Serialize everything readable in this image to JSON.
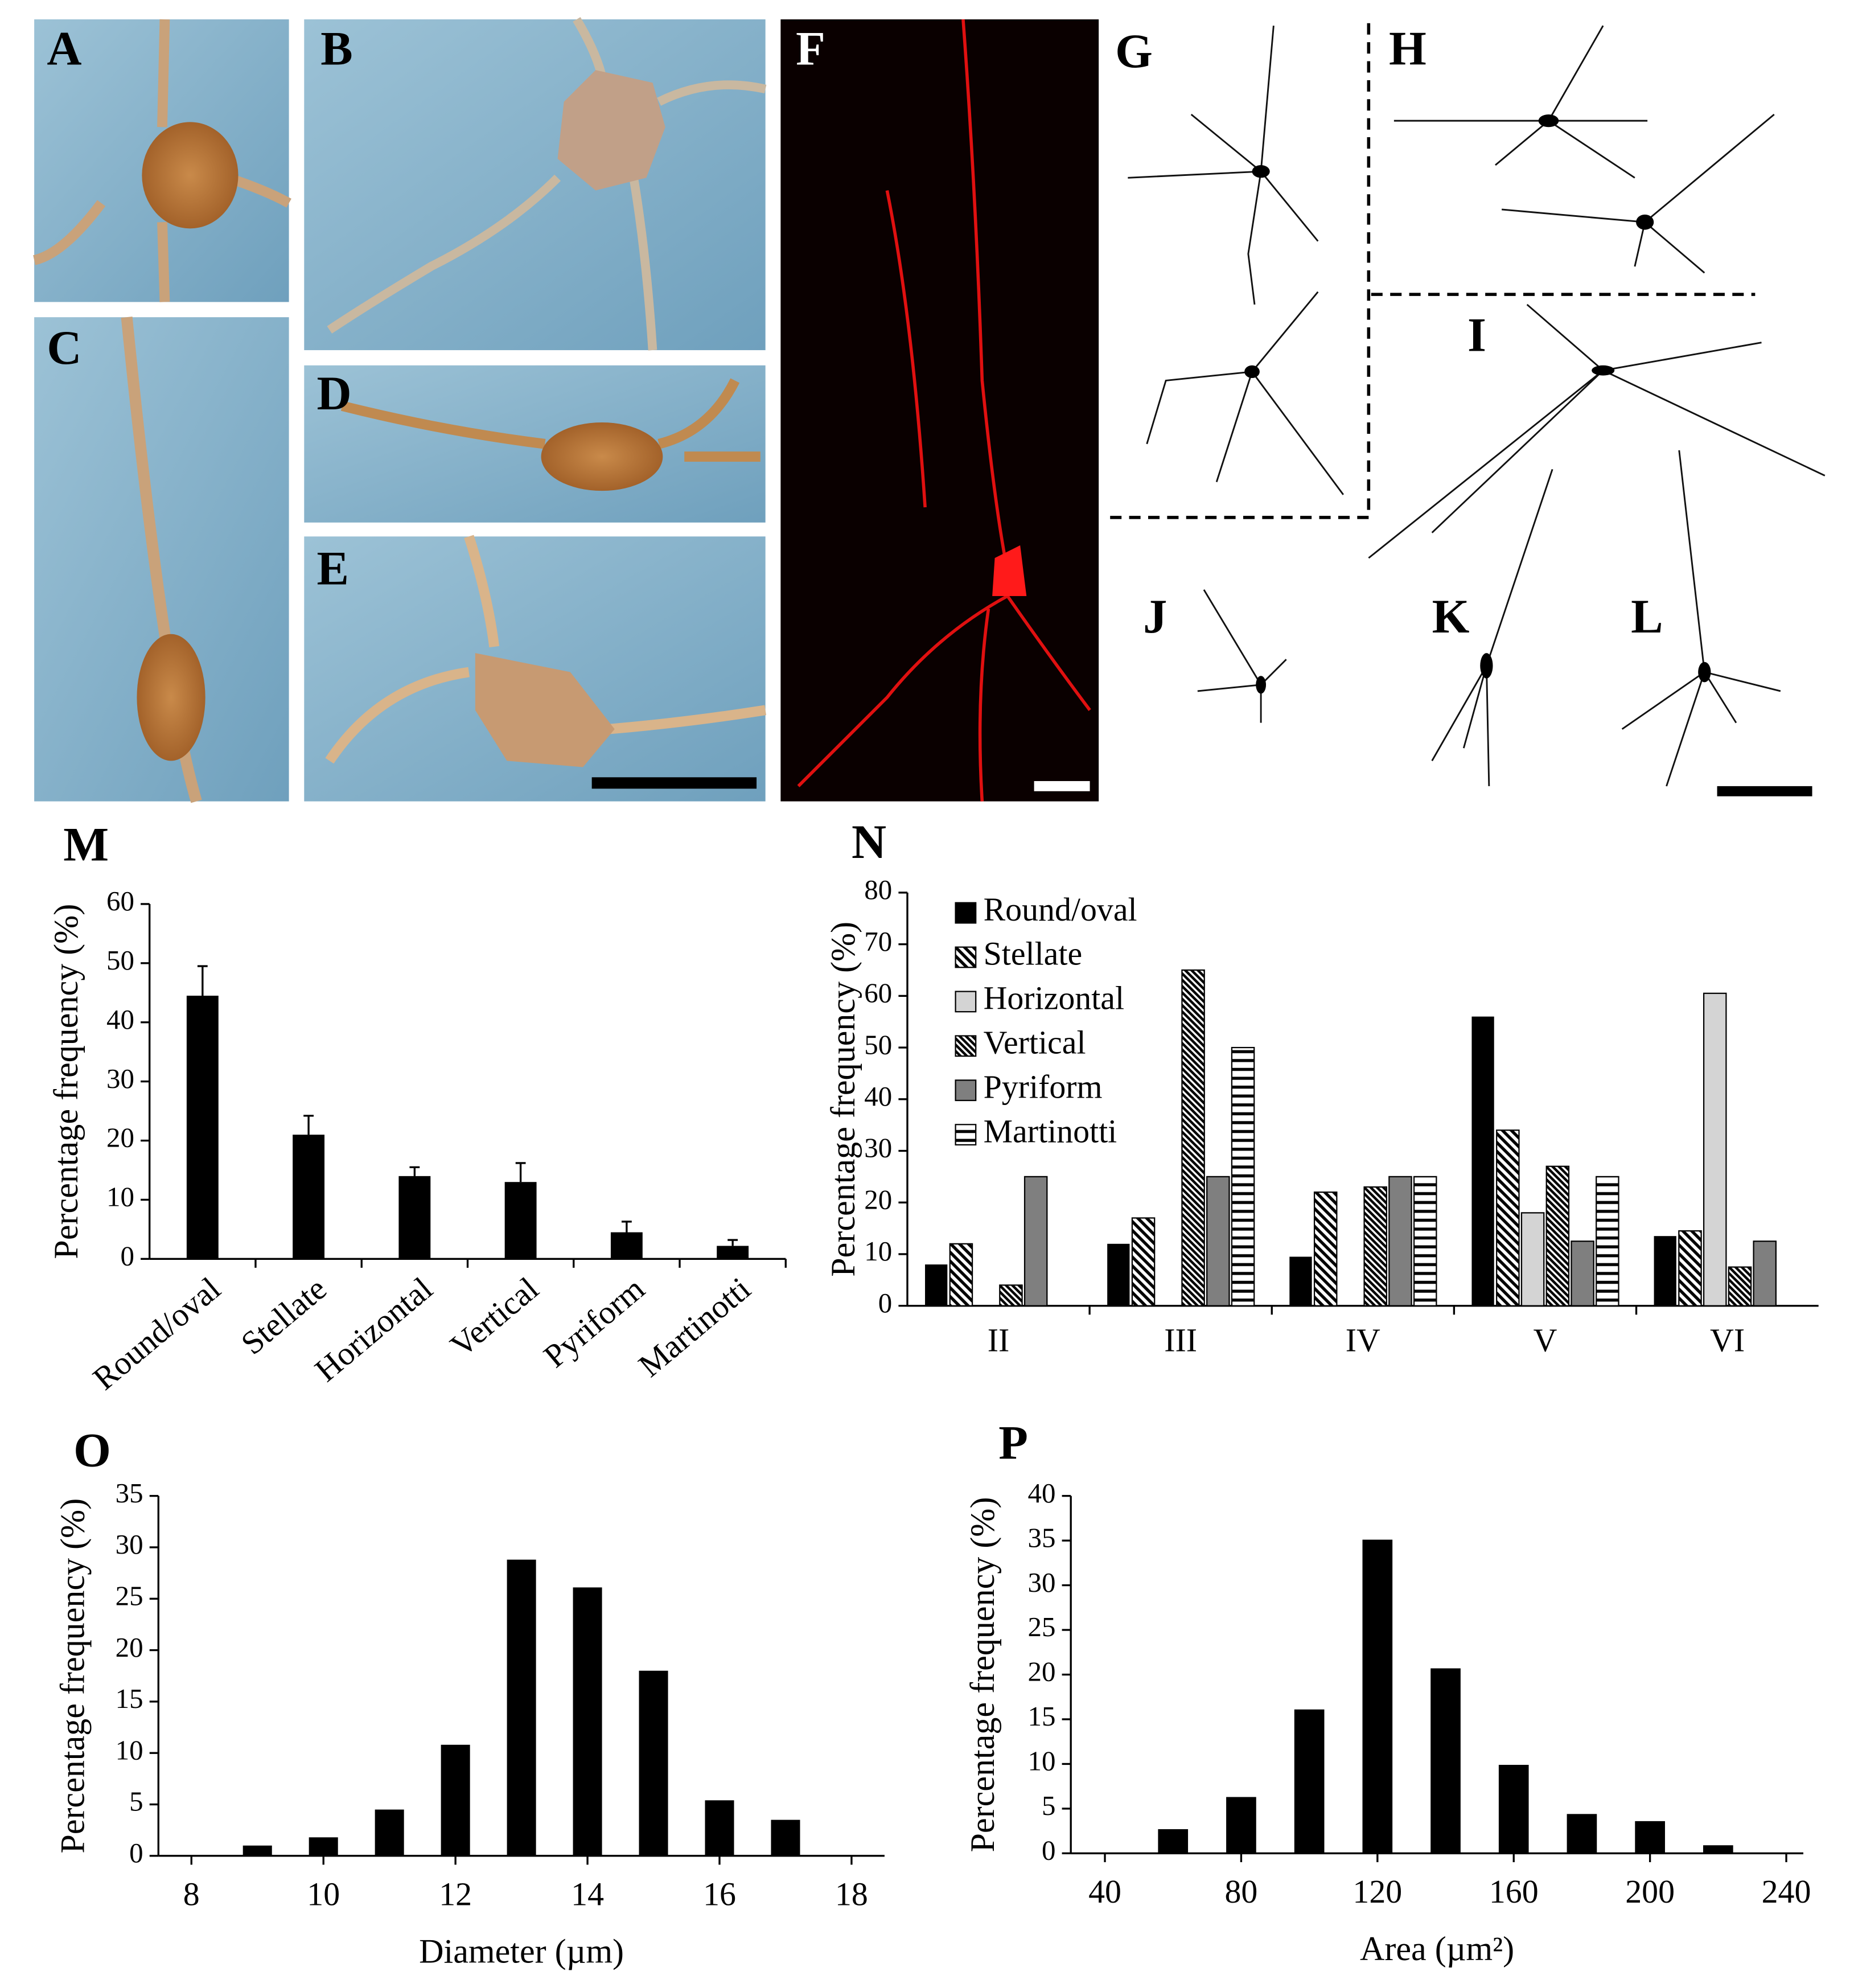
{
  "panel_labels": [
    "A",
    "B",
    "C",
    "D",
    "E",
    "F",
    "G",
    "H",
    "I",
    "J",
    "K",
    "L"
  ],
  "chart_data": [
    {
      "type": "bar",
      "title": "M",
      "y_label": "Percentage frequency (%)",
      "categories": [
        "Round/oval",
        "Stellate",
        "Horizontal",
        "Vertical",
        "Pyriform",
        "Martinotti"
      ],
      "values": [
        44.5,
        21,
        14,
        13,
        4.5,
        2.2
      ],
      "errors": [
        5,
        3.2,
        1.5,
        3.2,
        1.8,
        1
      ],
      "color": "#000000",
      "ylim": [
        0,
        60
      ],
      "yticks": [
        0,
        10,
        20,
        30,
        40,
        50,
        60
      ]
    },
    {
      "type": "bar",
      "title": "N",
      "y_label": "Percentage frequency (%)",
      "categories": [
        "II",
        "III",
        "IV",
        "V",
        "VI"
      ],
      "series": [
        {
          "name": "Round/oval",
          "color": "#000000",
          "pattern": "solid",
          "values": [
            8,
            12,
            9.5,
            56,
            13.5
          ]
        },
        {
          "name": "Stellate",
          "color": "#000000",
          "pattern": "diagonal-wide",
          "values": [
            12,
            17,
            22,
            34,
            14.5
          ]
        },
        {
          "name": "Horizontal",
          "color": "#d4d4d4",
          "pattern": "solid",
          "values": [
            0,
            0,
            0,
            18,
            60.5
          ]
        },
        {
          "name": "Vertical",
          "color": "#000000",
          "pattern": "diagonal-dense",
          "values": [
            4,
            65,
            23,
            27,
            7.5
          ]
        },
        {
          "name": "Pyriform",
          "color": "#7f7f7f",
          "pattern": "solid",
          "values": [
            25,
            25,
            25,
            12.5,
            12.5
          ]
        },
        {
          "name": "Martinotti",
          "color": "#000000",
          "pattern": "horizontal",
          "values": [
            0,
            50,
            25,
            25,
            0
          ]
        }
      ],
      "legend": "upper-left",
      "ylim": [
        0,
        80
      ],
      "yticks": [
        0,
        10,
        20,
        30,
        40,
        50,
        60,
        70,
        80
      ]
    },
    {
      "type": "bar",
      "title": "O",
      "y_label": "Percentage frequency (%)",
      "x_label": "Diameter (µm)",
      "x": [
        9,
        10,
        11,
        12,
        13,
        14,
        15,
        16,
        17
      ],
      "values": [
        1,
        1.8,
        4.5,
        10.8,
        28.8,
        26.1,
        18,
        5.4,
        3.5
      ],
      "color": "#000000",
      "xlim": [
        7.5,
        18.5
      ],
      "xticks": [
        8,
        10,
        12,
        14,
        16,
        18
      ],
      "ylim": [
        0,
        35
      ],
      "yticks": [
        0,
        5,
        10,
        15,
        20,
        25,
        30,
        35
      ]
    },
    {
      "type": "bar",
      "title": "P",
      "y_label": "Percentage frequency (%)",
      "x_label": "Area (µm²)",
      "x": [
        60,
        80,
        100,
        120,
        140,
        160,
        180,
        200,
        220
      ],
      "values": [
        2.7,
        6.3,
        16.1,
        35.1,
        20.7,
        9.9,
        4.4,
        3.6,
        0.9
      ],
      "color": "#000000",
      "xlim": [
        30,
        245
      ],
      "xticks": [
        40,
        80,
        120,
        160,
        200,
        240
      ],
      "ylim": [
        0,
        40
      ],
      "yticks": [
        0,
        5,
        10,
        15,
        20,
        25,
        30,
        35,
        40
      ]
    }
  ]
}
